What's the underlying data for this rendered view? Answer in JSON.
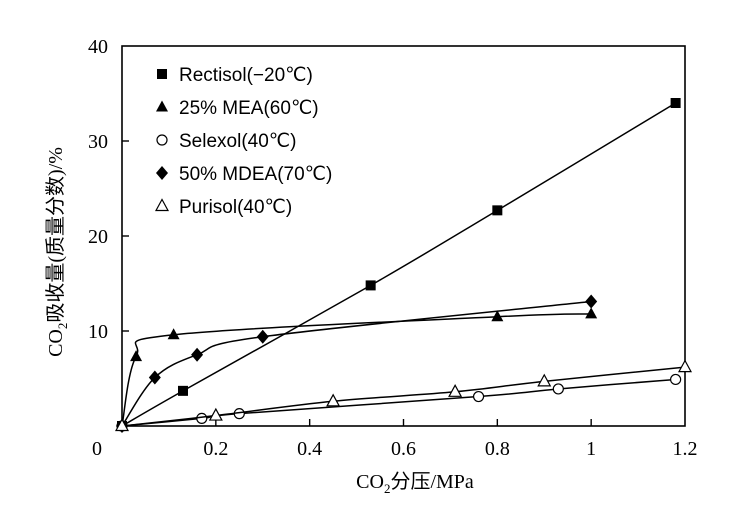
{
  "chart_data": {
    "type": "line",
    "xlabel": {
      "main": "CO",
      "sub": "2",
      "rest": "分压/MPa"
    },
    "ylabel": {
      "main": "CO",
      "sub": "2",
      "rest": "吸收量(质量分数)/%"
    },
    "xlim": [
      0,
      1.2
    ],
    "ylim": [
      0,
      40
    ],
    "x_ticks": [
      0,
      0.2,
      0.4,
      0.6,
      0.8,
      1.0,
      1.2
    ],
    "x_tick_labels": [
      "0",
      "0.2",
      "0.4",
      "0.6",
      "0.8",
      "1",
      "1.2"
    ],
    "y_ticks": [
      10,
      20,
      30,
      40
    ],
    "y_tick_labels": [
      "10",
      "20",
      "30",
      "40"
    ],
    "grid": false,
    "legend_position": "top-left",
    "series": [
      {
        "name": "Rectisol(−20℃)",
        "marker": "square-filled",
        "points": [
          [
            0,
            0
          ],
          [
            0.13,
            3.7
          ],
          [
            0.53,
            14.8
          ],
          [
            0.8,
            22.7
          ],
          [
            1.18,
            34.0
          ]
        ]
      },
      {
        "name": "25% MEA(60℃)",
        "marker": "triangle-filled",
        "points": [
          [
            0,
            0
          ],
          [
            0.03,
            7.3
          ],
          [
            0.11,
            9.6
          ],
          [
            0.8,
            11.5
          ],
          [
            1.0,
            11.8
          ]
        ]
      },
      {
        "name": "Selexol(40℃)",
        "marker": "circle-open",
        "points": [
          [
            0,
            0
          ],
          [
            0.17,
            0.8
          ],
          [
            0.25,
            1.3
          ],
          [
            0.76,
            3.1
          ],
          [
            0.93,
            3.9
          ],
          [
            1.18,
            4.9
          ]
        ]
      },
      {
        "name": "50% MDEA(70℃)",
        "marker": "diamond-filled",
        "points": [
          [
            0,
            0
          ],
          [
            0.07,
            5.1
          ],
          [
            0.16,
            7.5
          ],
          [
            0.3,
            9.4
          ],
          [
            1.0,
            13.1
          ]
        ]
      },
      {
        "name": "Purisol(40℃)",
        "marker": "triangle-open",
        "points": [
          [
            0,
            0
          ],
          [
            0.2,
            1.1
          ],
          [
            0.45,
            2.6
          ],
          [
            0.71,
            3.6
          ],
          [
            0.9,
            4.7
          ],
          [
            1.2,
            6.2
          ]
        ]
      }
    ]
  }
}
